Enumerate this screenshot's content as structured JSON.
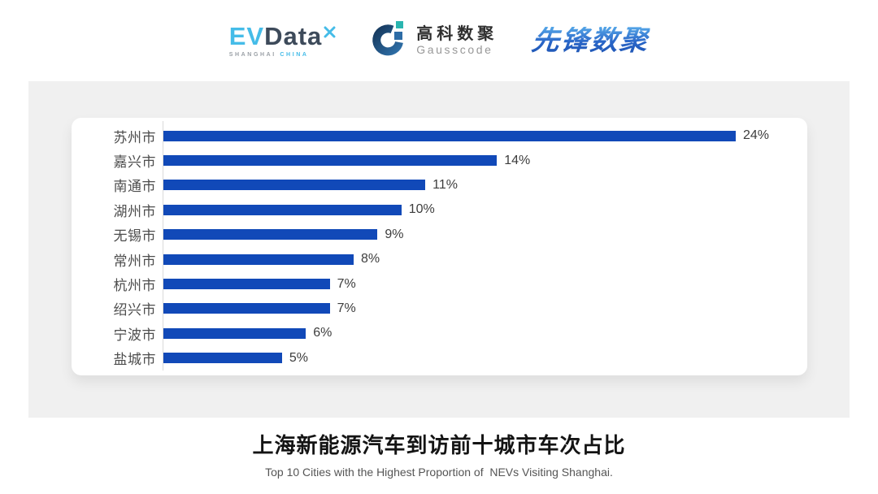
{
  "page": {
    "background": "#ffffff",
    "panel_color": "#f0f0f0"
  },
  "header": {
    "evdata": {
      "ev": "EV",
      "data": "Data",
      "sub_shanghai": "SHANGHAI",
      "sub_china": "CHINA",
      "accent_color": "#45bce8",
      "dark_color": "#3d4a5a"
    },
    "gausscode": {
      "name_cn": "高科数聚",
      "name_en": "Gausscode",
      "ring_color": "#1c4878",
      "teal_color": "#2ab5b0",
      "blue_color": "#2d6ca6"
    },
    "pioneer": {
      "name_cn": "先锋数聚",
      "color": "#2a66c8"
    }
  },
  "chart_data": {
    "type": "bar",
    "orientation": "horizontal",
    "categories": [
      "苏州市",
      "嘉兴市",
      "南通市",
      "湖州市",
      "无锡市",
      "常州市",
      "杭州市",
      "绍兴市",
      "宁波市",
      "盐城市"
    ],
    "values": [
      24,
      14,
      11,
      10,
      9,
      8,
      7,
      7,
      6,
      5
    ],
    "value_labels": [
      "24%",
      "14%",
      "11%",
      "10%",
      "9%",
      "8%",
      "7%",
      "7%",
      "6%",
      "5%"
    ],
    "unit": "%",
    "xlim": [
      0,
      24
    ],
    "bar_color": "#1149b8",
    "axis_line_color": "#d9d9d9",
    "label_color": "#4d4d4d",
    "value_color": "#3d3d3d",
    "grid": false,
    "legend": false,
    "title": "上海新能源汽车到访前十城市车次占比",
    "subtitle": "Top 10 Cities with the Highest Proportion of  NEVs Visiting Shanghai."
  }
}
